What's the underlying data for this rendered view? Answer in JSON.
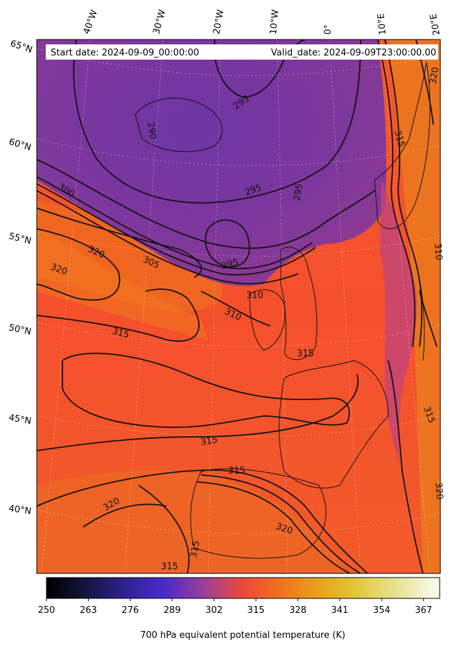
{
  "header": {
    "start_date": "Start date: 2024-09-09_00:00:00",
    "valid_date": "Valid_date: 2024-09-09T23:00:00.00"
  },
  "longitude_labels": [
    "40°W",
    "30°W",
    "20°W",
    "10°W",
    "0°",
    "10°E",
    "20°E"
  ],
  "latitude_labels": [
    "65°N",
    "60°N",
    "55°N",
    "50°N",
    "45°N",
    "40°N"
  ],
  "contour_labels": [
    "295",
    "295",
    "295",
    "295",
    "290",
    "300",
    "305",
    "310",
    "310",
    "315",
    "315",
    "315",
    "315",
    "315",
    "315",
    "320",
    "320",
    "320",
    "320",
    "320",
    "315",
    "315",
    "310",
    "320"
  ],
  "colorbar": {
    "ticks": [
      "250",
      "263",
      "276",
      "289",
      "302",
      "315",
      "328",
      "341",
      "354",
      "367"
    ],
    "label": "700 hPa equivalent potential temperature (K)",
    "range": [
      250,
      372
    ],
    "colormap": "CMRmap"
  }
}
